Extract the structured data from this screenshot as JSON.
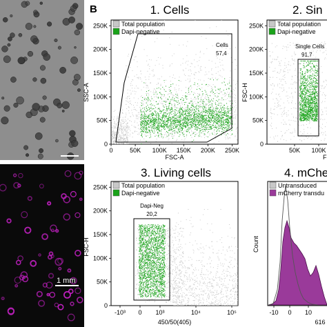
{
  "figure": {
    "panel_letter": "B",
    "scalebar_label": "1 mm",
    "colors": {
      "gray": "#c8c8c8",
      "green": "#1aa31a",
      "purple": "#9a3a9a",
      "magenta": "#c020c0",
      "dark": "#1a1a1a"
    }
  },
  "chart_data": [
    {
      "type": "scatter",
      "title": "1. Cells",
      "xlabel": "FSC-A",
      "ylabel": "SSC-A",
      "xticks": [
        "0",
        "50K",
        "100K",
        "150K",
        "200K",
        "250K"
      ],
      "yticks": [
        "0",
        "50K",
        "100K",
        "150K",
        "200K",
        "250K"
      ],
      "xlim": [
        0,
        262144
      ],
      "ylim": [
        0,
        262144
      ],
      "legend": {
        "placement": "top-left",
        "entries": [
          "Total population",
          "Dapi-negative"
        ]
      },
      "series": [
        {
          "name": "Total population",
          "color": "gray"
        },
        {
          "name": "Dapi-negative",
          "color": "green"
        }
      ],
      "gate": {
        "name": "Cells",
        "value": "57,4"
      }
    },
    {
      "type": "scatter",
      "title": "2. Sin",
      "xlabel": "F",
      "ylabel": "FSC-H",
      "xticks": [
        "50K",
        "100K"
      ],
      "yticks": [
        "0",
        "50K",
        "100K",
        "150K",
        "200K",
        "250K"
      ],
      "ylim": [
        0,
        262144
      ],
      "legend": {
        "placement": "top-left",
        "entries": [
          "Total population",
          "Dapi-negative"
        ]
      },
      "gate": {
        "name": "Single Cells",
        "value": "91,7"
      }
    },
    {
      "type": "scatter",
      "title": "3. Living cells",
      "xlabel": "450/50(405)",
      "ylabel": "FSC-H",
      "xticks": [
        "-10³",
        "0",
        "10³",
        "10⁴",
        "10⁵"
      ],
      "yticks": [
        "0",
        "50K",
        "100K",
        "150K",
        "200K",
        "250K"
      ],
      "ylim": [
        0,
        262144
      ],
      "xscale": "biexponential",
      "legend": {
        "placement": "top-left",
        "entries": [
          "Total population",
          "Dapi-negative"
        ]
      },
      "gate": {
        "name": "Dapi-Neg",
        "value": "20,2"
      }
    },
    {
      "type": "area",
      "title": "4. mChe",
      "ylabel": "Count",
      "xtick_partial": "616",
      "xticks": [
        "-10",
        "0",
        "10"
      ],
      "legend": {
        "placement": "top-left",
        "entries": [
          "Untransduced",
          "mCherry transdu"
        ]
      },
      "series": [
        {
          "name": "Untransduced",
          "color": "gray"
        },
        {
          "name": "mCherry transdu",
          "color": "purple"
        }
      ]
    }
  ]
}
